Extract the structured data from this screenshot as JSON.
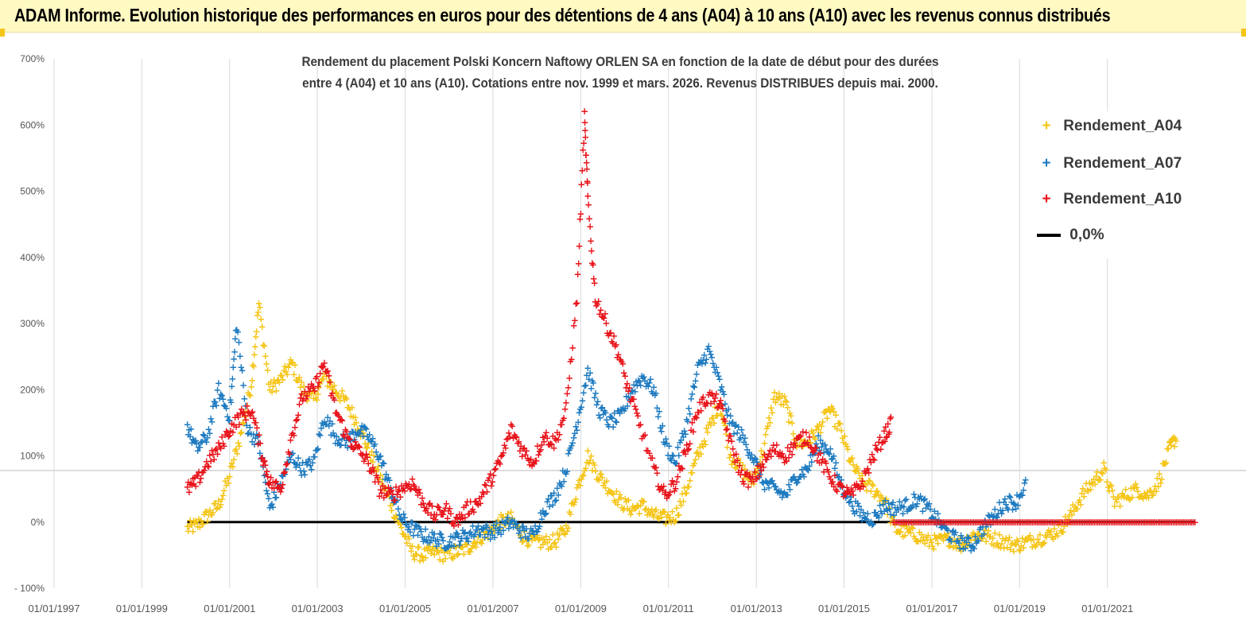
{
  "header": {
    "title": "ADAM Informe. Evolution historique des performances en euros pour des détentions de 4 ans (A04) à 10 ans (A10) avec les revenus connus distribués"
  },
  "colors": {
    "banner": "#fff9c2",
    "A04": "#f5c518",
    "A07": "#1f7bc0",
    "A10": "#e8141b",
    "zero_line": "#000000"
  },
  "chart_data": {
    "type": "scatter",
    "title": "Rendement du placement Polski Koncern Naftowy ORLEN SA en fonction de la date de début pour des durées entre 4 (A04) et 10 ans (A10).  Cotations entre nov. 1999 et mars. 2026. Revenus DISTRIBUES depuis mai. 2000.",
    "title_lines": [
      "Rendement du placement Polski Koncern Naftowy ORLEN SA en fonction de la date de début pour des durées",
      "entre 4 (A04) et 10 ans (A10).  Cotations entre nov. 1999 et mars. 2026. Revenus DISTRIBUES depuis mai. 2000."
    ],
    "xlabel": "",
    "ylabel": "",
    "ylim": [
      -100,
      700
    ],
    "xlim": [
      "1997-01-01",
      "2023-03-01"
    ],
    "y_ticks": [
      "- 100%",
      "0%",
      "100%",
      "200%",
      "300%",
      "400%",
      "500%",
      "600%",
      "700%"
    ],
    "x_ticks": [
      "01/01/1997",
      "01/01/1999",
      "01/01/2001",
      "01/01/2003",
      "01/01/2005",
      "01/01/2007",
      "01/01/2009",
      "01/01/2011",
      "01/01/2013",
      "01/01/2015",
      "01/01/2017",
      "01/01/2019",
      "01/01/2021"
    ],
    "grid": "vertical",
    "legend_position": "top-right",
    "legend": [
      "Rendement_A04",
      "Rendement_A07",
      "Rendement_A10",
      "0,0%"
    ],
    "series": [
      {
        "name": "Rendement_A04",
        "color": "#f5c518",
        "points": [
          [
            "2000-01-15",
            -10
          ],
          [
            "2000-04-01",
            -5
          ],
          [
            "2000-07-01",
            10
          ],
          [
            "2000-10-01",
            25
          ],
          [
            "2001-01-01",
            70
          ],
          [
            "2001-04-01",
            130
          ],
          [
            "2001-07-01",
            210
          ],
          [
            "2001-09-01",
            330
          ],
          [
            "2001-12-01",
            200
          ],
          [
            "2002-03-01",
            215
          ],
          [
            "2002-06-01",
            240
          ],
          [
            "2002-09-01",
            200
          ],
          [
            "2002-12-01",
            185
          ],
          [
            "2003-03-01",
            220
          ],
          [
            "2003-06-01",
            200
          ],
          [
            "2003-09-01",
            180
          ],
          [
            "2003-12-01",
            150
          ],
          [
            "2004-03-01",
            110
          ],
          [
            "2004-06-01",
            70
          ],
          [
            "2004-09-01",
            30
          ],
          [
            "2004-12-01",
            -10
          ],
          [
            "2005-03-01",
            -45
          ],
          [
            "2005-06-01",
            -50
          ],
          [
            "2005-09-01",
            -45
          ],
          [
            "2005-12-01",
            -50
          ],
          [
            "2006-03-01",
            -45
          ],
          [
            "2006-06-01",
            -40
          ],
          [
            "2006-09-01",
            -25
          ],
          [
            "2006-12-01",
            -15
          ],
          [
            "2007-03-01",
            0
          ],
          [
            "2007-06-01",
            5
          ],
          [
            "2007-09-01",
            -20
          ],
          [
            "2007-12-01",
            -30
          ],
          [
            "2008-03-01",
            -30
          ],
          [
            "2008-06-01",
            -30
          ],
          [
            "2008-09-01",
            -10
          ],
          [
            "2008-12-01",
            50
          ],
          [
            "2009-03-01",
            100
          ],
          [
            "2009-06-01",
            70
          ],
          [
            "2009-09-01",
            50
          ],
          [
            "2009-12-01",
            30
          ],
          [
            "2010-03-01",
            20
          ],
          [
            "2010-06-01",
            25
          ],
          [
            "2010-09-01",
            10
          ],
          [
            "2010-12-01",
            5
          ],
          [
            "2011-03-01",
            10
          ],
          [
            "2011-06-01",
            50
          ],
          [
            "2011-09-01",
            100
          ],
          [
            "2011-12-01",
            140
          ],
          [
            "2012-03-01",
            180
          ],
          [
            "2012-06-01",
            100
          ],
          [
            "2012-09-01",
            80
          ],
          [
            "2012-12-01",
            60
          ],
          [
            "2013-03-01",
            110
          ],
          [
            "2013-06-01",
            190
          ],
          [
            "2013-09-01",
            180
          ],
          [
            "2013-12-01",
            120
          ],
          [
            "2014-03-01",
            120
          ],
          [
            "2014-06-01",
            140
          ],
          [
            "2014-09-01",
            170
          ],
          [
            "2014-12-01",
            140
          ],
          [
            "2015-03-01",
            90
          ],
          [
            "2015-06-01",
            60
          ],
          [
            "2015-09-01",
            50
          ],
          [
            "2015-12-01",
            35
          ],
          [
            "2016-03-01",
            -10
          ],
          [
            "2016-06-01",
            -15
          ],
          [
            "2016-09-01",
            -20
          ],
          [
            "2016-12-01",
            -30
          ],
          [
            "2017-03-01",
            -30
          ],
          [
            "2017-06-01",
            -25
          ],
          [
            "2017-09-01",
            -35
          ],
          [
            "2017-12-01",
            -20
          ],
          [
            "2018-03-01",
            -20
          ],
          [
            "2018-06-01",
            -25
          ],
          [
            "2018-09-01",
            -30
          ],
          [
            "2018-12-01",
            -35
          ],
          [
            "2019-03-01",
            -30
          ],
          [
            "2019-06-01",
            -25
          ],
          [
            "2019-09-01",
            -20
          ],
          [
            "2019-12-01",
            -10
          ],
          [
            "2020-03-01",
            10
          ],
          [
            "2020-06-01",
            40
          ],
          [
            "2020-09-01",
            60
          ],
          [
            "2020-12-01",
            80
          ],
          [
            "2021-03-01",
            30
          ],
          [
            "2021-06-01",
            40
          ],
          [
            "2021-09-01",
            50
          ],
          [
            "2021-12-01",
            40
          ],
          [
            "2022-03-01",
            60
          ],
          [
            "2022-06-01",
            110
          ],
          [
            "2022-08-01",
            130
          ]
        ]
      },
      {
        "name": "Rendement_A07",
        "color": "#1f7bc0",
        "points": [
          [
            "2000-01-15",
            145
          ],
          [
            "2000-04-01",
            110
          ],
          [
            "2000-07-01",
            130
          ],
          [
            "2000-10-01",
            200
          ],
          [
            "2001-01-01",
            160
          ],
          [
            "2001-03-01",
            300
          ],
          [
            "2001-06-01",
            140
          ],
          [
            "2001-09-01",
            120
          ],
          [
            "2001-12-01",
            20
          ],
          [
            "2002-03-01",
            60
          ],
          [
            "2002-06-01",
            100
          ],
          [
            "2002-09-01",
            80
          ],
          [
            "2002-12-01",
            90
          ],
          [
            "2003-03-01",
            160
          ],
          [
            "2003-06-01",
            130
          ],
          [
            "2003-09-01",
            120
          ],
          [
            "2003-12-01",
            140
          ],
          [
            "2004-03-01",
            130
          ],
          [
            "2004-06-01",
            100
          ],
          [
            "2004-09-01",
            50
          ],
          [
            "2004-12-01",
            5
          ],
          [
            "2005-03-01",
            -10
          ],
          [
            "2005-06-01",
            -20
          ],
          [
            "2005-09-01",
            -25
          ],
          [
            "2005-12-01",
            -30
          ],
          [
            "2006-03-01",
            -25
          ],
          [
            "2006-06-01",
            -20
          ],
          [
            "2006-09-01",
            -10
          ],
          [
            "2006-12-01",
            -15
          ],
          [
            "2007-03-01",
            -10
          ],
          [
            "2007-06-01",
            0
          ],
          [
            "2007-09-01",
            -15
          ],
          [
            "2007-12-01",
            -20
          ],
          [
            "2008-03-01",
            20
          ],
          [
            "2008-06-01",
            40
          ],
          [
            "2008-09-01",
            80
          ],
          [
            "2008-12-01",
            150
          ],
          [
            "2009-03-01",
            230
          ],
          [
            "2009-06-01",
            170
          ],
          [
            "2009-09-01",
            150
          ],
          [
            "2009-12-01",
            160
          ],
          [
            "2010-03-01",
            200
          ],
          [
            "2010-06-01",
            220
          ],
          [
            "2010-09-01",
            200
          ],
          [
            "2010-12-01",
            120
          ],
          [
            "2011-03-01",
            90
          ],
          [
            "2011-06-01",
            150
          ],
          [
            "2011-09-01",
            230
          ],
          [
            "2011-12-01",
            260
          ],
          [
            "2012-03-01",
            210
          ],
          [
            "2012-06-01",
            150
          ],
          [
            "2012-09-01",
            130
          ],
          [
            "2012-12-01",
            100
          ],
          [
            "2013-03-01",
            60
          ],
          [
            "2013-06-01",
            50
          ],
          [
            "2013-09-01",
            40
          ],
          [
            "2013-12-01",
            70
          ],
          [
            "2014-03-01",
            80
          ],
          [
            "2014-06-01",
            120
          ],
          [
            "2014-09-01",
            110
          ],
          [
            "2014-12-01",
            60
          ],
          [
            "2015-03-01",
            30
          ],
          [
            "2015-06-01",
            10
          ],
          [
            "2015-09-01",
            5
          ],
          [
            "2015-12-01",
            25
          ],
          [
            "2016-03-01",
            20
          ],
          [
            "2016-06-01",
            25
          ],
          [
            "2016-09-01",
            35
          ],
          [
            "2016-12-01",
            20
          ],
          [
            "2017-03-01",
            0
          ],
          [
            "2017-06-01",
            -20
          ],
          [
            "2017-09-01",
            -30
          ],
          [
            "2017-12-01",
            -35
          ],
          [
            "2018-03-01",
            -10
          ],
          [
            "2018-06-01",
            10
          ],
          [
            "2018-09-01",
            30
          ],
          [
            "2018-12-01",
            30
          ],
          [
            "2019-03-01",
            60
          ]
        ]
      },
      {
        "name": "Rendement_A10",
        "color": "#e8141b",
        "points": [
          [
            "2000-01-15",
            50
          ],
          [
            "2000-04-01",
            60
          ],
          [
            "2000-07-01",
            90
          ],
          [
            "2000-10-01",
            110
          ],
          [
            "2001-01-01",
            140
          ],
          [
            "2001-04-01",
            160
          ],
          [
            "2001-07-01",
            170
          ],
          [
            "2001-10-01",
            100
          ],
          [
            "2001-12-01",
            60
          ],
          [
            "2002-03-01",
            50
          ],
          [
            "2002-06-01",
            130
          ],
          [
            "2002-09-01",
            190
          ],
          [
            "2002-12-01",
            200
          ],
          [
            "2003-03-01",
            240
          ],
          [
            "2003-06-01",
            170
          ],
          [
            "2003-09-01",
            130
          ],
          [
            "2003-12-01",
            110
          ],
          [
            "2004-03-01",
            90
          ],
          [
            "2004-06-01",
            50
          ],
          [
            "2004-09-01",
            40
          ],
          [
            "2004-12-01",
            50
          ],
          [
            "2005-03-01",
            60
          ],
          [
            "2005-06-01",
            30
          ],
          [
            "2005-09-01",
            10
          ],
          [
            "2005-12-01",
            20
          ],
          [
            "2006-03-01",
            0
          ],
          [
            "2006-06-01",
            20
          ],
          [
            "2006-09-01",
            30
          ],
          [
            "2006-12-01",
            60
          ],
          [
            "2007-03-01",
            90
          ],
          [
            "2007-06-01",
            140
          ],
          [
            "2007-09-01",
            110
          ],
          [
            "2007-12-01",
            90
          ],
          [
            "2008-03-01",
            130
          ],
          [
            "2008-06-01",
            120
          ],
          [
            "2008-09-01",
            170
          ],
          [
            "2008-12-01",
            340
          ],
          [
            "2009-02-01",
            610
          ],
          [
            "2009-03-01",
            490
          ],
          [
            "2009-05-01",
            340
          ],
          [
            "2009-08-01",
            300
          ],
          [
            "2009-11-01",
            260
          ],
          [
            "2010-02-01",
            200
          ],
          [
            "2010-05-01",
            150
          ],
          [
            "2010-09-01",
            80
          ],
          [
            "2010-12-01",
            40
          ],
          [
            "2011-03-01",
            60
          ],
          [
            "2011-06-01",
            110
          ],
          [
            "2011-09-01",
            170
          ],
          [
            "2011-12-01",
            190
          ],
          [
            "2012-03-01",
            180
          ],
          [
            "2012-06-01",
            120
          ],
          [
            "2012-09-01",
            70
          ],
          [
            "2012-12-01",
            60
          ],
          [
            "2013-03-01",
            90
          ],
          [
            "2013-06-01",
            110
          ],
          [
            "2013-09-01",
            100
          ],
          [
            "2013-12-01",
            120
          ],
          [
            "2014-03-01",
            130
          ],
          [
            "2014-06-01",
            100
          ],
          [
            "2014-09-01",
            70
          ],
          [
            "2014-12-01",
            50
          ],
          [
            "2015-03-01",
            40
          ],
          [
            "2015-06-01",
            60
          ],
          [
            "2015-09-01",
            100
          ],
          [
            "2015-12-01",
            130
          ],
          [
            "2016-02-01",
            150
          ]
        ]
      }
    ],
    "zero_line": {
      "name": "0,0%",
      "value": 0,
      "x_start": "2000-01-15",
      "x_end": "2022-12-31"
    }
  }
}
